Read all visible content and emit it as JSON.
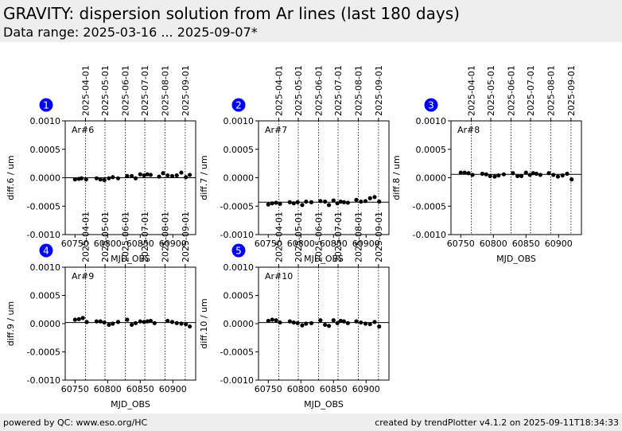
{
  "header": {
    "title": "GRAVITY: dispersion solution from Ar lines (last 180 days)",
    "subtitle": "Data range: 2025-03-16 ... 2025-09-07*"
  },
  "footer": {
    "left": "powered by QC: www.eso.org/HC",
    "right": "created by trendPlotter v4.1.2 on 2025-09-11T18:34:33"
  },
  "colors": {
    "badge": "#0000ff",
    "header_bg": "#eeeeee",
    "points": "#000000"
  },
  "chart_data": [
    {
      "type": "scatter",
      "panel_number": "1",
      "label": "Ar#6",
      "xlabel": "MJD_OBS",
      "ylabel": "diff.6 / um",
      "xlim": [
        60735,
        60935
      ],
      "ylim": [
        -0.001,
        0.001
      ],
      "xticks": [
        60750,
        60800,
        60850,
        60900
      ],
      "yticks": [
        -0.001,
        -0.0005,
        0.0,
        0.0005,
        0.001
      ],
      "ytick_labels": [
        "-0.0010",
        "-0.0005",
        "0.0000",
        "0.0005",
        "0.0010"
      ],
      "date_ticks": [
        "2025-04-01",
        "2025-05-01",
        "2025-06-01",
        "2025-07-01",
        "2025-08-01",
        "2025-09-01"
      ],
      "date_tick_mjd": [
        60766,
        60796,
        60827,
        60857,
        60888,
        60919
      ],
      "reference_line": 0.0,
      "x": [
        60750,
        60756,
        60760,
        60767,
        60783,
        60789,
        60795,
        60802,
        60808,
        60816,
        60830,
        60837,
        60843,
        60850,
        60856,
        60861,
        60866,
        60879,
        60885,
        60892,
        60899,
        60906,
        60913,
        60920,
        60926
      ],
      "y": [
        -3e-05,
        -2e-05,
        -1e-05,
        -3e-05,
        -1e-05,
        -3e-05,
        -4e-05,
        -1e-05,
        1e-05,
        -1e-05,
        3e-05,
        3e-05,
        -1e-05,
        6e-05,
        4e-05,
        6e-05,
        5e-05,
        2e-05,
        8e-05,
        4e-05,
        3e-05,
        4e-05,
        9e-05,
        1e-05,
        5e-05
      ]
    },
    {
      "type": "scatter",
      "panel_number": "2",
      "label": "Ar#7",
      "xlabel": "MJD_OBS",
      "ylabel": "diff.7 / um",
      "xlim": [
        60735,
        60935
      ],
      "ylim": [
        -0.001,
        0.001
      ],
      "xticks": [
        60750,
        60800,
        60850,
        60900
      ],
      "yticks": [
        -0.001,
        -0.0005,
        0.0,
        0.0005,
        0.001
      ],
      "ytick_labels": [
        "-0.0010",
        "-0.0005",
        "0.0000",
        "0.0005",
        "0.0010"
      ],
      "date_ticks": [
        "2025-04-01",
        "2025-05-01",
        "2025-06-01",
        "2025-07-01",
        "2025-08-01",
        "2025-09-01"
      ],
      "date_tick_mjd": [
        60766,
        60796,
        60827,
        60857,
        60888,
        60919
      ],
      "reference_line": -0.00043,
      "x": [
        60750,
        60756,
        60762,
        60768,
        60783,
        60789,
        60795,
        60802,
        60808,
        60816,
        60830,
        60837,
        60843,
        60850,
        60856,
        60861,
        60866,
        60872,
        60885,
        60892,
        60899,
        60906,
        60913,
        60920
      ],
      "y": [
        -0.00047,
        -0.00045,
        -0.00044,
        -0.00046,
        -0.00043,
        -0.00045,
        -0.00043,
        -0.00048,
        -0.00042,
        -0.00043,
        -0.00041,
        -0.00042,
        -0.00048,
        -0.0004,
        -0.00045,
        -0.00042,
        -0.00043,
        -0.00044,
        -0.00039,
        -0.00042,
        -0.00041,
        -0.00036,
        -0.00034,
        -0.00042
      ]
    },
    {
      "type": "scatter",
      "panel_number": "3",
      "label": "Ar#8",
      "xlabel": "MJD_OBS",
      "ylabel": "diff.8 / um",
      "xlim": [
        60735,
        60935
      ],
      "ylim": [
        -0.001,
        0.001
      ],
      "xticks": [
        60750,
        60800,
        60850,
        60900
      ],
      "yticks": [
        -0.001,
        -0.0005,
        0.0,
        0.0005,
        0.001
      ],
      "ytick_labels": [
        "-0.0010",
        "-0.0005",
        "0.0000",
        "0.0005",
        "0.0010"
      ],
      "date_ticks": [
        "2025-04-01",
        "2025-05-01",
        "2025-06-01",
        "2025-07-01",
        "2025-08-01",
        "2025-09-01"
      ],
      "date_tick_mjd": [
        60766,
        60796,
        60827,
        60857,
        60888,
        60919
      ],
      "reference_line": 6e-05,
      "x": [
        60750,
        60756,
        60762,
        60768,
        60783,
        60789,
        60795,
        60802,
        60808,
        60816,
        60830,
        60837,
        60843,
        60850,
        60856,
        60861,
        60866,
        60872,
        60885,
        60892,
        60899,
        60906,
        60913,
        60920
      ],
      "y": [
        9e-05,
        9e-05,
        8e-05,
        5e-05,
        7e-05,
        6e-05,
        3e-05,
        2e-05,
        4e-05,
        6e-05,
        8e-05,
        3e-05,
        3e-05,
        9e-05,
        5e-05,
        8e-05,
        7e-05,
        5e-05,
        8e-05,
        5e-05,
        2e-05,
        4e-05,
        7e-05,
        -3e-05
      ]
    },
    {
      "type": "scatter",
      "panel_number": "4",
      "label": "Ar#9",
      "xlabel": "MJD_OBS",
      "ylabel": "diff.9 / um",
      "xlim": [
        60735,
        60935
      ],
      "ylim": [
        -0.001,
        0.001
      ],
      "xticks": [
        60750,
        60800,
        60850,
        60900
      ],
      "yticks": [
        -0.001,
        -0.0005,
        0.0,
        0.0005,
        0.001
      ],
      "ytick_labels": [
        "-0.0010",
        "-0.0005",
        "0.0000",
        "0.0005",
        "0.0010"
      ],
      "date_ticks": [
        "2025-04-01",
        "2025-05-01",
        "2025-06-01",
        "2025-07-01",
        "2025-08-01",
        "2025-09-01"
      ],
      "date_tick_mjd": [
        60766,
        60796,
        60827,
        60857,
        60888,
        60919
      ],
      "reference_line": 2e-05,
      "x": [
        60750,
        60756,
        60762,
        60768,
        60783,
        60789,
        60795,
        60802,
        60808,
        60816,
        60830,
        60837,
        60843,
        60850,
        60856,
        60861,
        60866,
        60872,
        60892,
        60899,
        60906,
        60913,
        60920,
        60926
      ],
      "y": [
        7e-05,
        8e-05,
        0.0001,
        3e-05,
        4e-05,
        4e-05,
        2e-05,
        -2e-05,
        0.0,
        3e-05,
        7e-05,
        -2e-05,
        1e-05,
        4e-05,
        3e-05,
        4e-05,
        5e-05,
        1e-05,
        5e-05,
        3e-05,
        1e-05,
        0.0,
        -1e-05,
        -5e-05
      ]
    },
    {
      "type": "scatter",
      "panel_number": "5",
      "label": "Ar#10",
      "xlabel": "MJD_OBS",
      "ylabel": "diff.10 / um",
      "xlim": [
        60735,
        60935
      ],
      "ylim": [
        -0.001,
        0.001
      ],
      "xticks": [
        60750,
        60800,
        60850,
        60900
      ],
      "yticks": [
        -0.001,
        -0.0005,
        0.0,
        0.0005,
        0.001
      ],
      "ytick_labels": [
        "-0.0010",
        "-0.0005",
        "0.0000",
        "0.0005",
        "0.0010"
      ],
      "date_ticks": [
        "2025-04-01",
        "2025-05-01",
        "2025-06-01",
        "2025-07-01",
        "2025-08-01",
        "2025-09-01"
      ],
      "date_tick_mjd": [
        60766,
        60796,
        60827,
        60857,
        60888,
        60919
      ],
      "reference_line": 2e-05,
      "x": [
        60750,
        60756,
        60762,
        60768,
        60783,
        60789,
        60795,
        60802,
        60808,
        60816,
        60830,
        60837,
        60843,
        60850,
        60856,
        60861,
        60866,
        60872,
        60885,
        60892,
        60899,
        60906,
        60913,
        60920
      ],
      "y": [
        5e-05,
        7e-05,
        6e-05,
        2e-05,
        4e-05,
        2e-05,
        1e-05,
        -3e-05,
        0.0,
        1e-05,
        6e-05,
        -2e-05,
        -4e-05,
        6e-05,
        1e-05,
        5e-05,
        4e-05,
        1e-05,
        4e-05,
        2e-05,
        0.0,
        -1e-05,
        3e-05,
        -5e-05
      ]
    }
  ]
}
